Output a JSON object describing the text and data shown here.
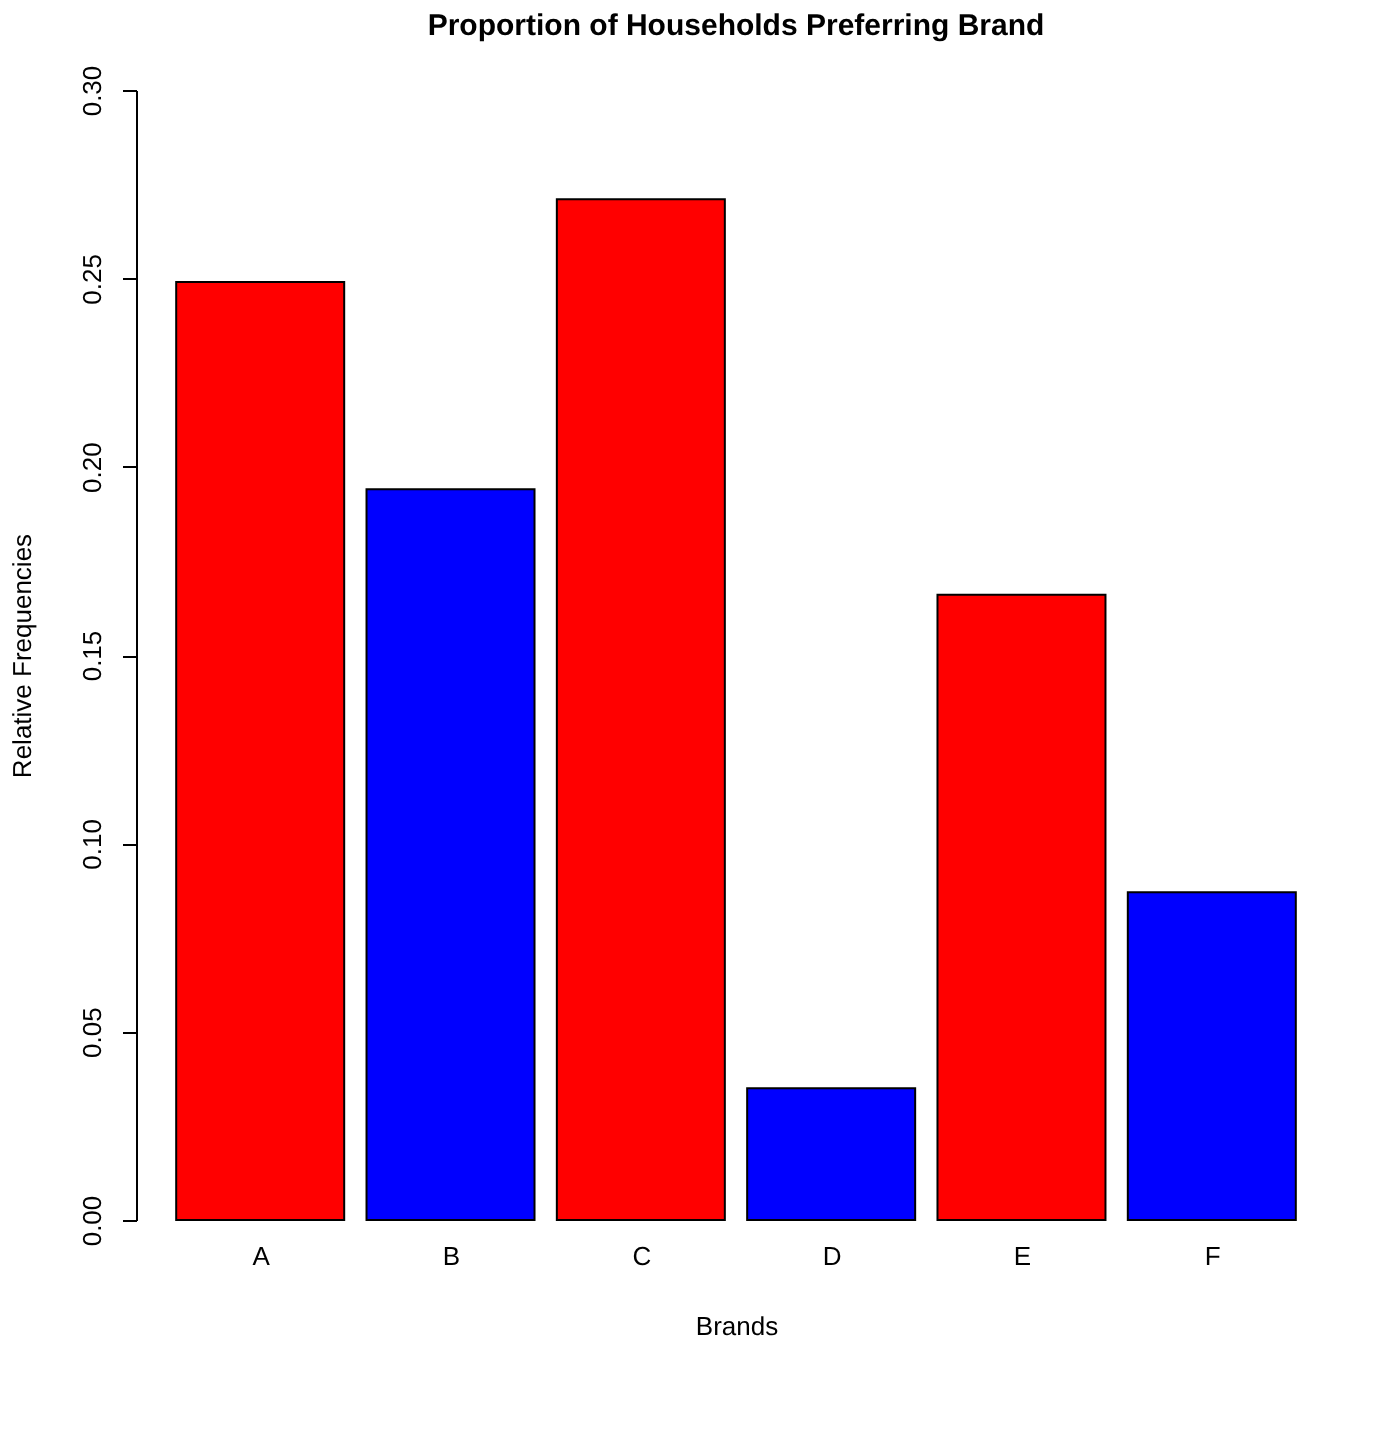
{
  "chart_data": {
    "type": "bar",
    "title": "Proportion of Households Preferring Brand",
    "xlabel": "Brands",
    "ylabel": "Relative Frequencies",
    "categories": [
      "A",
      "B",
      "C",
      "D",
      "E",
      "F"
    ],
    "values": [
      0.249,
      0.194,
      0.271,
      0.035,
      0.166,
      0.087
    ],
    "colors": [
      "#ff0000",
      "#0000ff",
      "#ff0000",
      "#0000ff",
      "#ff0000",
      "#0000ff"
    ],
    "ylim": [
      0,
      0.3
    ],
    "yticks": [
      {
        "value": 0,
        "label": "0.00"
      },
      {
        "value": 0.05,
        "label": "0.05"
      },
      {
        "value": 0.1,
        "label": "0.10"
      },
      {
        "value": 0.15,
        "label": "0.15"
      },
      {
        "value": 0.2,
        "label": "0.20"
      },
      {
        "value": 0.25,
        "label": "0.25"
      },
      {
        "value": 0.3,
        "label": "0.30"
      }
    ],
    "grid": false
  }
}
